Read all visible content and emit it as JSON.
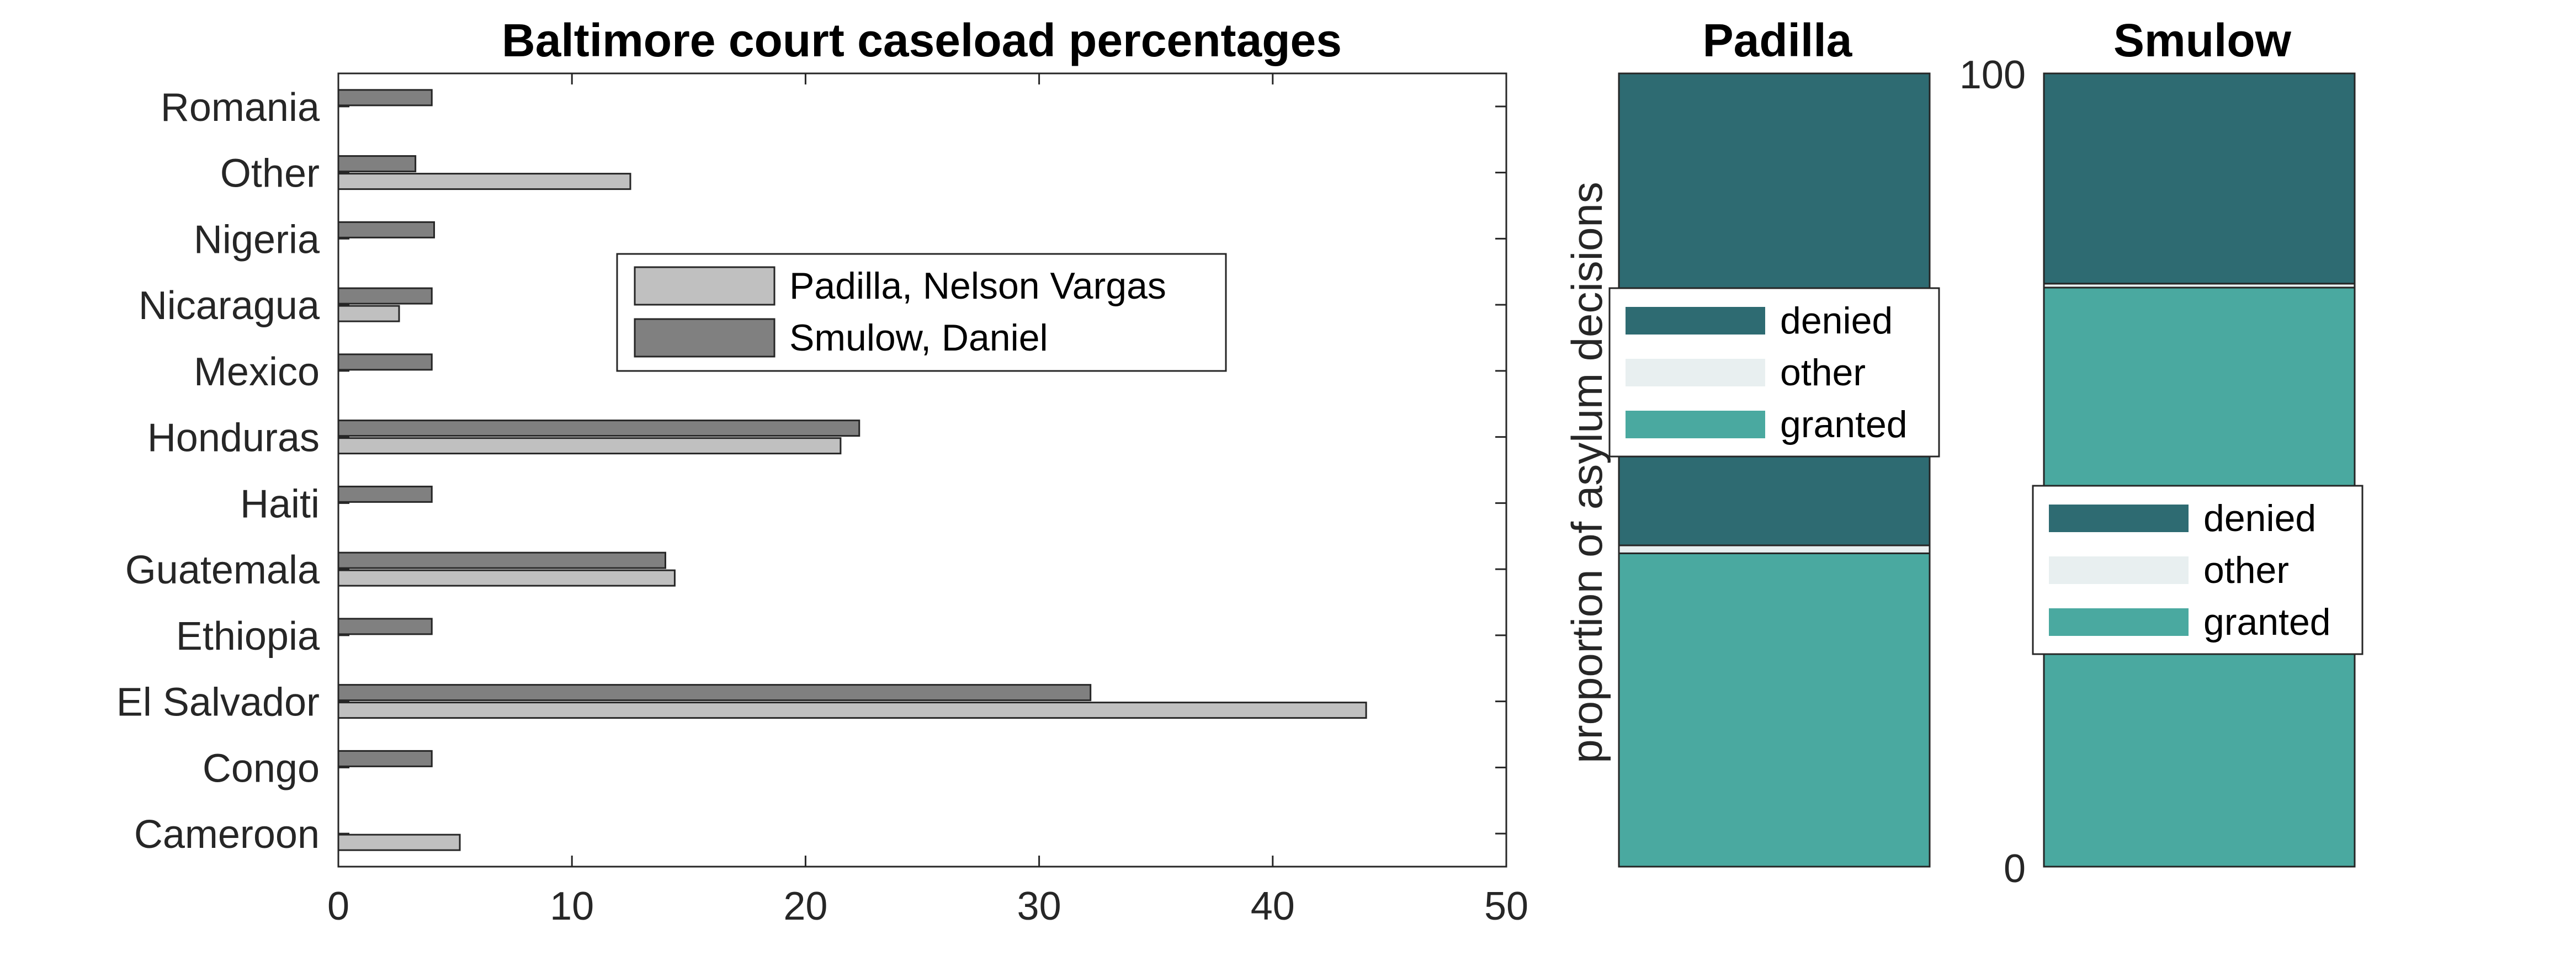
{
  "chart_data": [
    {
      "type": "bar",
      "orientation": "horizontal",
      "title": "Baltimore court caseload percentages",
      "categories": [
        "Cameroon",
        "Congo",
        "El Salvador",
        "Ethiopia",
        "Guatemala",
        "Haiti",
        "Honduras",
        "Mexico",
        "Nicaragua",
        "Nigeria",
        "Other",
        "Romania"
      ],
      "series": [
        {
          "name": "Padilla, Nelson Vargas",
          "color": "#c0c0c0",
          "values": [
            5.2,
            0,
            44.0,
            0,
            14.4,
            0,
            21.5,
            0,
            2.6,
            0,
            12.5,
            0
          ]
        },
        {
          "name": "Smulow, Daniel",
          "color": "#808080",
          "values": [
            0,
            4.0,
            32.2,
            4.0,
            14.0,
            4.0,
            22.3,
            4.0,
            4.0,
            4.1,
            3.3,
            4.0
          ]
        }
      ],
      "xlim": [
        0,
        50
      ],
      "xticks": [
        "0",
        "10",
        "20",
        "30",
        "40",
        "50"
      ],
      "legend_position": "upper-center",
      "grid": false
    },
    {
      "type": "stacked-bar",
      "title": "Padilla",
      "ylabel": "proportion of asylum decisions",
      "ylim": [
        0,
        100
      ],
      "segments": [
        {
          "name": "granted",
          "value": 39.5,
          "color": "#4aa9a0"
        },
        {
          "name": "other",
          "value": 1.0,
          "color": "#e8eff0"
        },
        {
          "name": "denied",
          "value": 59.5,
          "color": "#2e6b72"
        }
      ],
      "legend": [
        "denied",
        "other",
        "granted"
      ]
    },
    {
      "type": "stacked-bar",
      "title": "Smulow",
      "ylim": [
        0,
        100
      ],
      "yticks": [
        "0",
        "100"
      ],
      "segments": [
        {
          "name": "granted",
          "value": 73.0,
          "color": "#4aa9a0"
        },
        {
          "name": "other",
          "value": 0.5,
          "color": "#e8eff0"
        },
        {
          "name": "denied",
          "value": 26.5,
          "color": "#2e6b72"
        }
      ],
      "legend": [
        "denied",
        "other",
        "granted"
      ]
    }
  ]
}
